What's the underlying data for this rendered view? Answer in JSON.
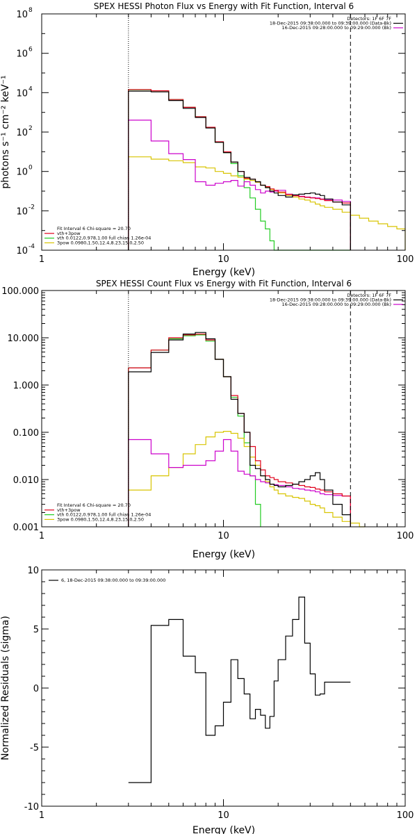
{
  "colors": {
    "observed": "#000000",
    "total": "#e0001b",
    "vth": "#22cc22",
    "3pow": "#d8c400",
    "model2": "#cc00cc",
    "background": "#ffffff"
  },
  "chart_data": [
    {
      "type": "line",
      "title": "SPEX HESSI Photon Flux vs Energy with Fit Function, Interval 6",
      "xlabel": "Energy (keV)",
      "ylabel": "photons s⁻¹ cm⁻² keV⁻¹",
      "xlim": [
        1,
        100
      ],
      "ylim": [
        0.0001,
        100000000
      ],
      "xscale": "log",
      "yscale": "log",
      "drawstyle": "steps",
      "x_ticks": [
        {
          "v": 1,
          "label": "1"
        },
        {
          "v": 10,
          "label": "10"
        },
        {
          "v": 100,
          "label": "100"
        }
      ],
      "y_ticks": [
        {
          "v": 0.0001,
          "base": "10",
          "exp": "-4"
        },
        {
          "v": 0.01,
          "base": "10",
          "exp": "-2"
        },
        {
          "v": 1,
          "base": "10",
          "exp": "0"
        },
        {
          "v": 100,
          "base": "10",
          "exp": "2"
        },
        {
          "v": 10000,
          "base": "10",
          "exp": "4"
        },
        {
          "v": 1000000,
          "base": "10",
          "exp": "6"
        },
        {
          "v": 100000000,
          "base": "10",
          "exp": "8"
        }
      ],
      "vlines": [
        {
          "x": 3.0,
          "style": "dotted"
        },
        {
          "x": 50.0,
          "style": "dashed"
        }
      ],
      "legend_top_right": {
        "position": "top-right",
        "lines": [
          {
            "text": "Detectors: 1F 6F 7F",
            "color": null
          },
          {
            "text": "18-Dec-2015 09:38:00.000 to 09:39:00.000 (Data-Bk)",
            "color": "#000000"
          },
          {
            "text": "16-Dec-2015 09:28:00.000 to 09:29:00.000 (Bk)",
            "color": "#cc00cc"
          }
        ]
      },
      "legend_bottom_left": {
        "position": "bottom-left",
        "lines": [
          {
            "text": "Fit Interval 6   Chi-square = 20.70",
            "color": null
          },
          {
            "text": "vth+3pow",
            "color": "#e0001b"
          },
          {
            "text": "vth 0.0122,0.978,1.00  full chian 1.26e-04",
            "color": "#22cc22"
          },
          {
            "text": "3pow 0.0980,1.50,12.4,8.23,15.0,2.50",
            "color": "#d8c400"
          }
        ]
      },
      "series": [
        {
          "color": "#22cc22",
          "x": [
            3,
            4,
            5,
            6,
            7,
            8,
            9,
            10,
            11,
            12,
            13,
            14,
            15,
            16,
            17,
            18,
            19,
            20,
            50
          ],
          "y": [
            14000,
            12500,
            4500,
            1800,
            600,
            170,
            30,
            9,
            2.5,
            0.6,
            0.15,
            0.045,
            0.012,
            0.003,
            0.0012,
            0.0003,
            0.0001,
            0.0001,
            0.0001
          ]
        },
        {
          "color": "#d8c400",
          "x": [
            3,
            4,
            5,
            6,
            7,
            8,
            9,
            10,
            11,
            12,
            13,
            14,
            15,
            16,
            17,
            18,
            19,
            20,
            22,
            24,
            26,
            28,
            30,
            32,
            34,
            36,
            40,
            45,
            50,
            56,
            63,
            71,
            80,
            90,
            100
          ],
          "y": [
            5.5,
            4.2,
            3.5,
            2.8,
            1.7,
            1.5,
            1.0,
            0.8,
            0.6,
            0.5,
            0.4,
            0.35,
            0.28,
            0.2,
            0.16,
            0.12,
            0.1,
            0.08,
            0.06,
            0.05,
            0.04,
            0.035,
            0.028,
            0.022,
            0.018,
            0.015,
            0.012,
            0.0085,
            0.006,
            0.0042,
            0.003,
            0.0022,
            0.0016,
            0.0012,
            0.001
          ]
        },
        {
          "color": "#cc00cc",
          "x": [
            3,
            4,
            5,
            6,
            7,
            8,
            9,
            10,
            11,
            12,
            13,
            14,
            15,
            16,
            17,
            18,
            19,
            20,
            22,
            24,
            26,
            28,
            30,
            32,
            34,
            36,
            40,
            45,
            50
          ],
          "y": [
            400,
            35,
            8,
            4,
            0.3,
            0.2,
            0.25,
            0.3,
            0.35,
            0.18,
            0.3,
            0.2,
            0.12,
            0.08,
            0.1,
            0.09,
            0.1,
            0.11,
            0.07,
            0.06,
            0.055,
            0.05,
            0.047,
            0.045,
            0.04,
            0.037,
            0.035,
            0.03,
            0.027
          ]
        },
        {
          "color": "#e0001b",
          "x": [
            3,
            4,
            5,
            6,
            7,
            8,
            9,
            10,
            11,
            12,
            13,
            14,
            15,
            16,
            17,
            18,
            19,
            20,
            22,
            24,
            26,
            28,
            30,
            32,
            34,
            36,
            40,
            45,
            50
          ],
          "y": [
            14500,
            12500,
            4500,
            1800,
            600,
            175,
            32,
            10,
            3,
            1,
            0.45,
            0.4,
            0.3,
            0.2,
            0.17,
            0.13,
            0.11,
            0.09,
            0.067,
            0.058,
            0.052,
            0.048,
            0.045,
            0.042,
            0.038,
            0.033,
            0.028,
            0.025,
            0.024
          ]
        },
        {
          "color": "#000000",
          "x": [
            3,
            4,
            5,
            6,
            7,
            8,
            9,
            10,
            11,
            12,
            13,
            14,
            15,
            16,
            17,
            18,
            19,
            20,
            22,
            24,
            26,
            28,
            30,
            32,
            34,
            36,
            40,
            45,
            50
          ],
          "y": [
            12000,
            11000,
            4000,
            1600,
            550,
            160,
            30,
            9,
            3,
            1,
            0.5,
            0.4,
            0.3,
            0.2,
            0.15,
            0.1,
            0.08,
            0.06,
            0.05,
            0.065,
            0.07,
            0.075,
            0.08,
            0.07,
            0.06,
            0.04,
            0.028,
            0.02,
            0.014
          ]
        }
      ]
    },
    {
      "type": "line",
      "title": "SPEX HESSI Count Flux vs Energy with Fit Function, Interval 6",
      "xlabel": "Energy (keV)",
      "ylabel": "",
      "xlim": [
        1,
        100
      ],
      "ylim": [
        0.001,
        100
      ],
      "xscale": "log",
      "yscale": "log",
      "drawstyle": "steps",
      "x_ticks": [
        {
          "v": 1,
          "label": "1"
        },
        {
          "v": 10,
          "label": "10"
        },
        {
          "v": 100,
          "label": "100"
        }
      ],
      "y_ticks": [
        {
          "v": 0.001,
          "label": "0.001"
        },
        {
          "v": 0.01,
          "label": "0.010"
        },
        {
          "v": 0.1,
          "label": "0.100"
        },
        {
          "v": 1,
          "label": "1.000"
        },
        {
          "v": 10,
          "label": "10.000"
        },
        {
          "v": 100,
          "label": "100.000"
        }
      ],
      "vlines": [
        {
          "x": 3.0,
          "style": "dotted"
        },
        {
          "x": 50.0,
          "style": "dashed"
        }
      ],
      "legend_top_right": {
        "position": "top-right",
        "lines": [
          {
            "text": "Detectors: 1F 6F 7F",
            "color": null
          },
          {
            "text": "18-Dec-2015 09:38:00.000 to 09:39:00.000 (Data-Bk)",
            "color": "#000000"
          },
          {
            "text": "16-Dec-2015 09:28:00.000 to 09:29:00.000 (Bk)",
            "color": "#cc00cc"
          }
        ]
      },
      "legend_bottom_left": {
        "position": "bottom-left",
        "lines": [
          {
            "text": "Fit Interval 6   Chi-square = 20.70",
            "color": null
          },
          {
            "text": "vth+3pow",
            "color": "#e0001b"
          },
          {
            "text": "vth 0.0122,0.978,1.00  full chian 1.26e-04",
            "color": "#22cc22"
          },
          {
            "text": "3pow 0.0980,1.50,12.4,8.23,15.0,2.50",
            "color": "#d8c400"
          }
        ]
      },
      "series": [
        {
          "color": "#22cc22",
          "x": [
            3,
            4,
            5,
            6,
            7,
            8,
            9,
            10,
            11,
            12,
            13,
            14,
            15,
            16
          ],
          "y": [
            2.3,
            5.5,
            9.5,
            11.0,
            11.5,
            8.5,
            3.5,
            1.5,
            0.55,
            0.22,
            0.06,
            0.012,
            0.003,
            0.001
          ]
        },
        {
          "color": "#d8c400",
          "x": [
            3,
            4,
            5,
            6,
            7,
            8,
            9,
            10,
            11,
            12,
            13,
            14,
            15,
            16,
            17,
            18,
            19,
            20,
            22,
            24,
            26,
            28,
            30,
            32,
            34,
            36,
            40,
            45,
            50,
            56,
            60
          ],
          "y": [
            0.006,
            0.012,
            0.018,
            0.035,
            0.055,
            0.08,
            0.1,
            0.105,
            0.095,
            0.075,
            0.05,
            0.03,
            0.02,
            0.012,
            0.009,
            0.007,
            0.006,
            0.005,
            0.0045,
            0.0042,
            0.004,
            0.0035,
            0.003,
            0.0028,
            0.0025,
            0.002,
            0.0016,
            0.0013,
            0.0012,
            0.001,
            0.001
          ]
        },
        {
          "color": "#cc00cc",
          "x": [
            3,
            4,
            5,
            6,
            7,
            8,
            9,
            10,
            11,
            12,
            13,
            14,
            15,
            16,
            17,
            18,
            19,
            20,
            22,
            24,
            26,
            28,
            30,
            32,
            34,
            36,
            40,
            45,
            50
          ],
          "y": [
            0.07,
            0.035,
            0.018,
            0.02,
            0.02,
            0.025,
            0.04,
            0.07,
            0.04,
            0.015,
            0.013,
            0.012,
            0.01,
            0.009,
            0.0085,
            0.008,
            0.0078,
            0.0075,
            0.007,
            0.0065,
            0.0063,
            0.006,
            0.0058,
            0.0055,
            0.005,
            0.0048,
            0.0046,
            0.0045,
            0.0045
          ]
        },
        {
          "color": "#e0001b",
          "x": [
            3,
            4,
            5,
            6,
            7,
            8,
            9,
            10,
            11,
            12,
            13,
            14,
            15,
            16,
            17,
            18,
            19,
            20,
            22,
            24,
            26,
            28,
            30,
            32,
            34,
            36,
            40,
            45,
            50
          ],
          "y": [
            2.3,
            5.5,
            10.0,
            11.5,
            12.0,
            9.0,
            3.5,
            1.5,
            0.6,
            0.25,
            0.1,
            0.05,
            0.025,
            0.016,
            0.012,
            0.011,
            0.01,
            0.009,
            0.0085,
            0.008,
            0.0075,
            0.007,
            0.0068,
            0.0063,
            0.006,
            0.0055,
            0.005,
            0.0045,
            0.0045
          ]
        },
        {
          "color": "#000000",
          "x": [
            3,
            4,
            5,
            6,
            7,
            8,
            9,
            10,
            11,
            12,
            13,
            14,
            15,
            16,
            17,
            18,
            19,
            20,
            22,
            24,
            26,
            28,
            30,
            32,
            34,
            36,
            40,
            45,
            50
          ],
          "y": [
            1.9,
            4.9,
            9.0,
            12.0,
            13.0,
            9.5,
            3.5,
            1.5,
            0.5,
            0.25,
            0.1,
            0.02,
            0.017,
            0.012,
            0.01,
            0.008,
            0.0075,
            0.007,
            0.0075,
            0.008,
            0.009,
            0.01,
            0.012,
            0.014,
            0.01,
            0.006,
            0.003,
            0.0018,
            0.0011
          ]
        }
      ]
    },
    {
      "type": "line",
      "title": "",
      "xlabel": "Energy (keV)",
      "ylabel": "Normalized Residuals (sigma)",
      "xlim": [
        1,
        100
      ],
      "ylim": [
        -10,
        10
      ],
      "xscale": "log",
      "yscale": "linear",
      "drawstyle": "steps",
      "x_ticks": [
        {
          "v": 1,
          "label": "1"
        },
        {
          "v": 10,
          "label": "10"
        },
        {
          "v": 100,
          "label": "100"
        }
      ],
      "y_ticks": [
        {
          "v": -10,
          "label": "-10"
        },
        {
          "v": -5,
          "label": "-5"
        },
        {
          "v": 0,
          "label": "0"
        },
        {
          "v": 5,
          "label": "5"
        },
        {
          "v": 10,
          "label": "10"
        }
      ],
      "vlines": [],
      "legend_top_left": {
        "position": "top-left",
        "lines": [
          {
            "text": "6, 18-Dec-2015 09:38:00.000 to 09:39:00.000",
            "color": "#000000"
          }
        ]
      },
      "series": [
        {
          "color": "#000000",
          "x": [
            3,
            4,
            5,
            6,
            7,
            8,
            9,
            10,
            11,
            12,
            13,
            14,
            15,
            16,
            17,
            18,
            19,
            20,
            22,
            24,
            26,
            28,
            30,
            32,
            34,
            36,
            40,
            45,
            50
          ],
          "y": [
            -8.0,
            5.3,
            5.8,
            2.7,
            1.3,
            -4.0,
            -3.2,
            -1.2,
            2.4,
            0.8,
            -0.5,
            -2.6,
            -1.8,
            -2.3,
            -3.4,
            -2.4,
            0.6,
            2.4,
            4.4,
            5.8,
            7.7,
            3.8,
            1.2,
            -0.6,
            -0.5,
            0.5,
            0.5,
            0.5,
            0.5
          ]
        }
      ]
    }
  ]
}
